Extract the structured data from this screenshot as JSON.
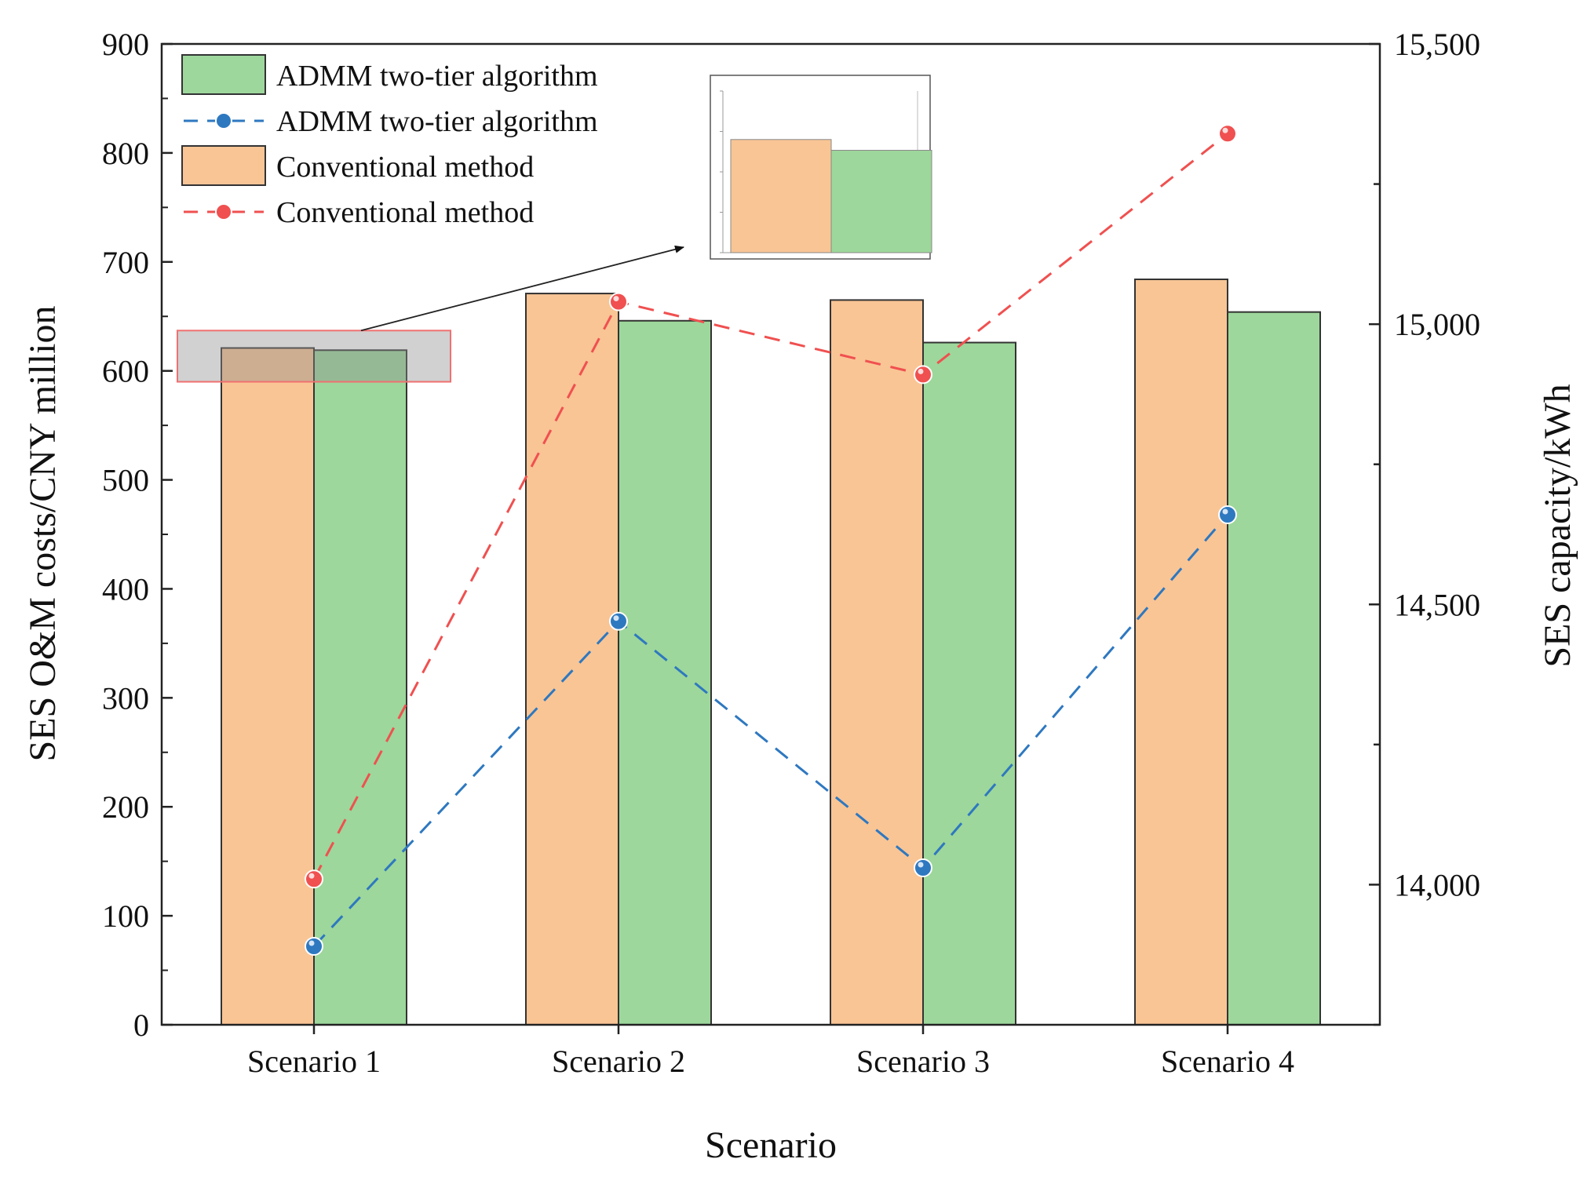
{
  "chart_data": {
    "type": "bar",
    "categories": [
      "Scenario 1",
      "Scenario 2",
      "Scenario 3",
      "Scenario 4"
    ],
    "xlabel": "Scenario",
    "ylabel": "SES O&M costs/CNY million",
    "y2label": "SES capacity/kWh",
    "ylim": [
      0,
      900
    ],
    "yticks": [
      "0",
      "100",
      "200",
      "300",
      "400",
      "500",
      "600",
      "700",
      "800",
      "900"
    ],
    "y2lim": [
      13750,
      15500
    ],
    "y2ticks": [
      "14,000",
      "14,500",
      "15,000",
      "15,500"
    ],
    "series": [
      {
        "name": "Conventional method",
        "kind": "bar",
        "axis": "left",
        "color": "#f9c595",
        "values": [
          621,
          671,
          665,
          684
        ]
      },
      {
        "name": "ADMM two-tier algorithm",
        "kind": "bar",
        "axis": "left",
        "color": "#9dd79b",
        "values": [
          619,
          646,
          626,
          654
        ]
      },
      {
        "name": "ADMM two-tier algorithm",
        "kind": "line",
        "axis": "right",
        "color": "#2e78c0",
        "values": [
          13890,
          14470,
          14030,
          14660
        ]
      },
      {
        "name": "Conventional method",
        "kind": "line",
        "axis": "right",
        "color": "#f05050",
        "values": [
          14010,
          15040,
          14910,
          15340
        ]
      }
    ],
    "legend": {
      "position": "top-left",
      "items": [
        {
          "label": "ADMM two-tier algorithm",
          "series": 1
        },
        {
          "label": "ADMM two-tier algorithm",
          "series": 2
        },
        {
          "label": "Conventional method",
          "series": 0
        },
        {
          "label": "Conventional method",
          "series": 3
        }
      ]
    },
    "inset": {
      "category": 0,
      "description": "zoomed view of Scenario 1 bars"
    }
  }
}
